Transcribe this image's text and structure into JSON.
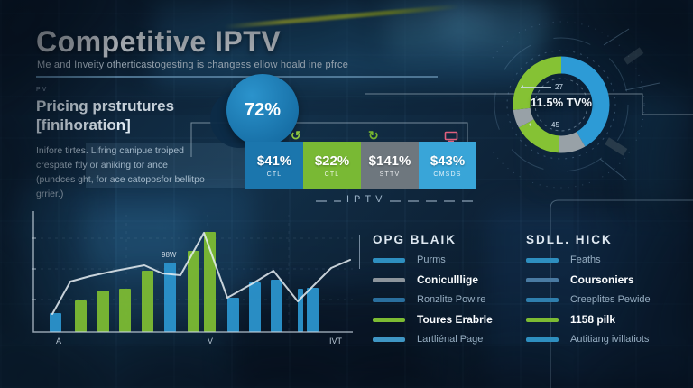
{
  "header": {
    "title": "Competitive IPTV",
    "subtitle": "Me and Inveity otherticastogesting is changess ellow hoald ine pfrce"
  },
  "pricing": {
    "kicker": "PV",
    "heading_line1": "Pricing prstrutures",
    "heading_line2": "[finihoration]",
    "body": "Inifore tirtes. Lifring canipue troiped crespate ftly or aniking tor ance (pundces ght, for ace catoposfor bellitpo grrier.)"
  },
  "highlight": {
    "value": "72%"
  },
  "icon_row": {
    "swirl": "↺",
    "refresh": "↻",
    "swirl_color": "#8dc63f",
    "refresh_color": "#76b52f",
    "tv_color": "#e0607e"
  },
  "stat_boxes": [
    {
      "value": "$41%",
      "label": "CTL",
      "color": "#1b76ad"
    },
    {
      "value": "$22%",
      "label": "CTL",
      "color": "#79b934"
    },
    {
      "value": "$141%",
      "label": "STTV",
      "color": "#6e777e"
    },
    {
      "value": "$43%",
      "label": "CMSDS",
      "color": "#39a5d8"
    }
  ],
  "divider": {
    "label": "IPTV"
  },
  "legend_left": {
    "title": "OPG BLAIK",
    "items": [
      {
        "label": "Purms",
        "color": "#2e8fc0",
        "emphasis": false
      },
      {
        "label": "Coniculllige",
        "color": "#8d959c",
        "emphasis": true
      },
      {
        "label": "Ronzlite Powire",
        "color": "#2a6f9e",
        "emphasis": false
      },
      {
        "label": "Toures Erabrle",
        "color": "#7cbb33",
        "emphasis": true
      },
      {
        "label": "Lartliénal Page",
        "color": "#3f96c4",
        "emphasis": false
      }
    ]
  },
  "legend_right": {
    "title": "SDLL. HICK",
    "items": [
      {
        "label": "Feaths",
        "color": "#2e8fc0",
        "emphasis": false
      },
      {
        "label": "Coursoniers",
        "color": "#4a7ba3",
        "emphasis": true
      },
      {
        "label": "Creeplites Pewide",
        "color": "#2f7fae",
        "emphasis": false
      },
      {
        "label": "1158 pilk",
        "color": "#7cbb33",
        "emphasis": true
      },
      {
        "label": "Autitiang ivillatiots",
        "color": "#2e8fc0",
        "emphasis": false
      }
    ]
  },
  "chart_data": [
    {
      "type": "pie",
      "title": "IPTV TV-share donut",
      "center_label": "11.5% TV%",
      "callout_top": "27",
      "callout_bottom": "45",
      "legend_position": "none",
      "segments": [
        {
          "label": "blue",
          "color": "#2d9bd6",
          "value": 41.7
        },
        {
          "label": "gray",
          "color": "#98a1a7",
          "value": 9.2
        },
        {
          "label": "green",
          "color": "#85c234",
          "value": 16.1
        },
        {
          "label": "gray2",
          "color": "#98a1a7",
          "value": 6.1
        },
        {
          "label": "green2",
          "color": "#85c234",
          "value": 26.9
        }
      ]
    },
    {
      "type": "bar",
      "title": "IPTV comparison bars with trend line",
      "categories": [
        "A",
        "V",
        "IVT"
      ],
      "category_x": [
        27,
        195,
        330
      ],
      "annotation": "98W",
      "ylim": [
        0,
        120
      ],
      "grid": "faint-dashed",
      "colors": {
        "blue": "#2b93cc",
        "green": "#7cbb33",
        "line": "#e8eef3"
      },
      "bars": [
        {
          "x": 20,
          "h": 21,
          "w": 13,
          "color": "blue"
        },
        {
          "x": 48,
          "h": 35,
          "w": 13,
          "color": "green"
        },
        {
          "x": 73,
          "h": 46,
          "w": 13,
          "color": "green"
        },
        {
          "x": 97,
          "h": 48,
          "w": 13,
          "color": "green"
        },
        {
          "x": 122,
          "h": 68,
          "w": 13,
          "color": "green"
        },
        {
          "x": 147,
          "h": 77,
          "w": 13,
          "color": "blue",
          "label": "98W"
        },
        {
          "x": 173,
          "h": 90,
          "w": 13,
          "color": "green"
        },
        {
          "x": 191,
          "h": 111,
          "w": 13,
          "color": "green"
        },
        {
          "x": 217,
          "h": 38,
          "w": 13,
          "color": "blue"
        },
        {
          "x": 241,
          "h": 55,
          "w": 13,
          "color": "blue"
        },
        {
          "x": 265,
          "h": 58,
          "w": 13,
          "color": "blue"
        },
        {
          "x": 295,
          "h": 48,
          "w": 6,
          "color": "blue"
        },
        {
          "x": 305,
          "h": 49,
          "w": 13,
          "color": "blue"
        }
      ],
      "line": [
        [
          23,
          120
        ],
        [
          43,
          84
        ],
        [
          65,
          78
        ],
        [
          93,
          72
        ],
        [
          125,
          66
        ],
        [
          145,
          75
        ],
        [
          165,
          77
        ],
        [
          191,
          30
        ],
        [
          217,
          102
        ],
        [
          247,
          85
        ],
        [
          268,
          72
        ],
        [
          295,
          106
        ],
        [
          332,
          69
        ],
        [
          353,
          60
        ]
      ]
    }
  ]
}
